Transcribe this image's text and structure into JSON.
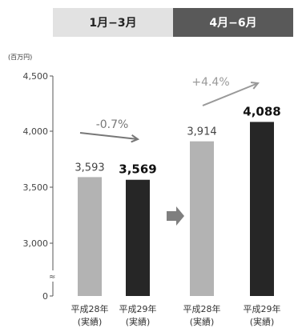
{
  "headers": {
    "period1": "1月−3月",
    "period2": "4月−6月"
  },
  "chart_data": {
    "type": "bar",
    "unit": "(百万円)",
    "y_ticks": [
      "4,500",
      "4,000",
      "3,500",
      "3,000",
      "0"
    ],
    "groups": [
      {
        "period": "1月−3月",
        "change": "-0.7%",
        "bars": [
          {
            "label_line1": "平成28年",
            "label_line2": "(実績)",
            "value": 3593,
            "value_label": "3,593",
            "color": "#b3b3b3"
          },
          {
            "label_line1": "平成29年",
            "label_line2": "(実績)",
            "value": 3569,
            "value_label": "3,569",
            "color": "#262626"
          }
        ]
      },
      {
        "period": "4月−6月",
        "change": "+4.4%",
        "bars": [
          {
            "label_line1": "平成28年",
            "label_line2": "(実績)",
            "value": 3914,
            "value_label": "3,914",
            "color": "#b3b3b3"
          },
          {
            "label_line1": "平成29年",
            "label_line2": "(実績)",
            "value": 4088,
            "value_label": "4,088",
            "color": "#262626"
          }
        ]
      }
    ],
    "ylim": [
      3000,
      4500
    ],
    "axis_break": true
  }
}
